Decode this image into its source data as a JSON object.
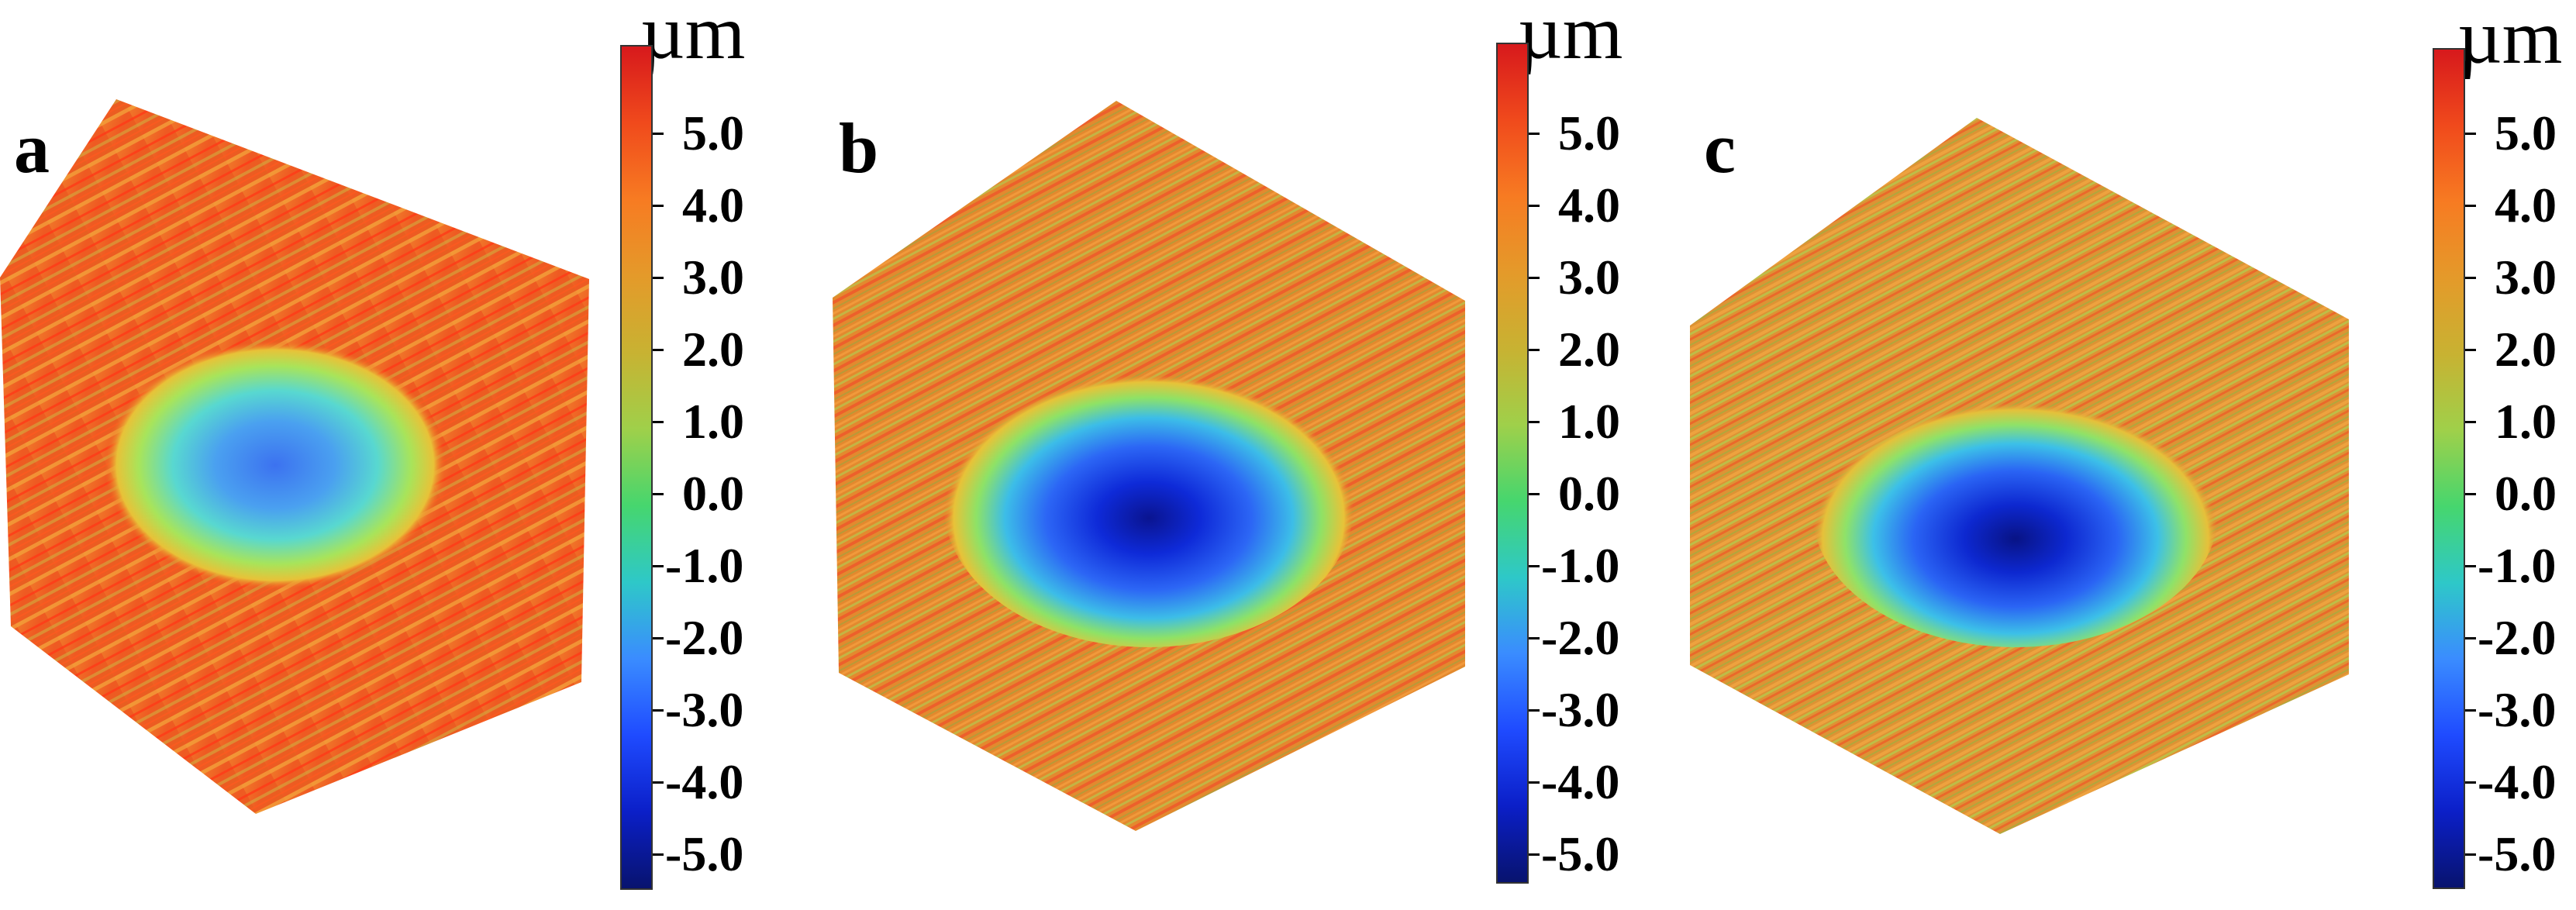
{
  "colorbar": {
    "unit": "µm",
    "ticks": [
      "5.0",
      "4.0",
      "3.0",
      "2.0",
      "1.0",
      "0.0",
      "-1.0",
      "-2.0",
      "-3.0",
      "-4.0",
      "-5.0"
    ],
    "gradient": [
      "#d7191c",
      "#f04a1c",
      "#f77b22",
      "#e49a2a",
      "#c8b232",
      "#9fd04a",
      "#46d66e",
      "#2ec8c8",
      "#3a8cff",
      "#1f4bff",
      "#0b1fc8",
      "#08136e"
    ]
  },
  "panels": [
    {
      "letter": "a"
    },
    {
      "letter": "b"
    },
    {
      "letter": "c"
    }
  ]
}
